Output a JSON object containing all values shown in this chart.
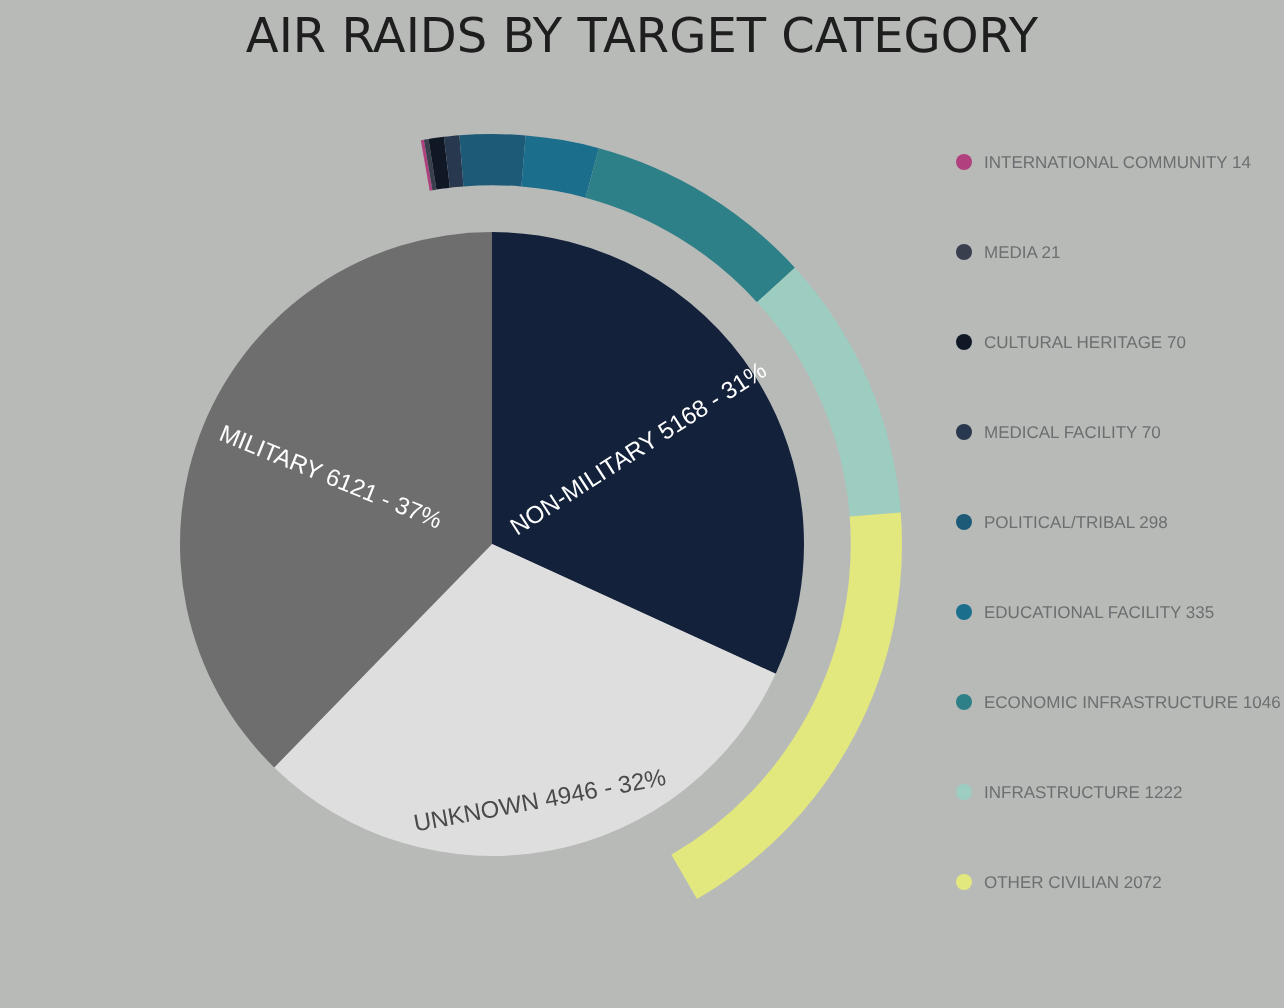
{
  "chart_data": [
    {
      "type": "pie",
      "title": "AIR RAIDS BY TARGET CATEGORY",
      "categories": [
        "NON-MILITARY",
        "UNKNOWN",
        "MILITARY"
      ],
      "values": [
        5168,
        4946,
        6121
      ],
      "value_labels": [
        "5168 - 31%",
        "4946 - 32%",
        "6121 - 37%"
      ],
      "colors": [
        "#13213a",
        "#dedede",
        "#6e6e6e"
      ]
    },
    {
      "type": "donut",
      "categories": [
        "INTERNATIONAL COMMUNITY 14",
        "MEDIA 21",
        "CULTURAL HERITAGE 70",
        "MEDICAL FACILITY 70",
        "POLITICAL/TRIBAL 298",
        "EDUCATIONAL FACILITY 335",
        "ECONOMIC INFRASTRUCTURE 1046",
        "INFRASTRUCTURE 1222",
        "OTHER CIVILIAN 2072"
      ],
      "values": [
        14,
        21,
        70,
        70,
        298,
        335,
        1046,
        1222,
        2072
      ],
      "colors": [
        "#b0407e",
        "#3a3f4e",
        "#101826",
        "#28384e",
        "#1d5a78",
        "#1b6e8c",
        "#2e8088",
        "#9ccdc0",
        "#e2e87e"
      ],
      "legend": "right"
    }
  ]
}
